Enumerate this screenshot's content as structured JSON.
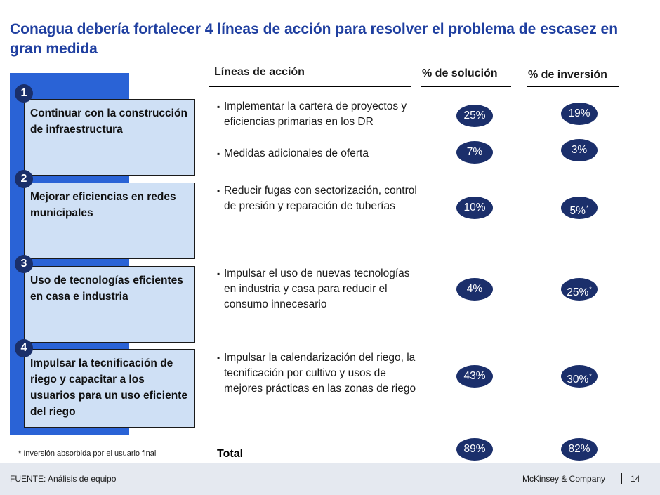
{
  "title": "Conagua debería fortalecer 4 líneas de acción para resolver el problema de escasez en gran medida",
  "headers": {
    "lineas": "Líneas de acción",
    "solucion": "% de solución",
    "inversion": "% de inversión"
  },
  "actions": [
    {
      "number": "1",
      "label": "Continuar con la construcción de infraestructura"
    },
    {
      "number": "2",
      "label": "Mejorar eficiencias en redes municipales"
    },
    {
      "number": "3",
      "label": "Uso de tecnologías eficientes en casa e industria"
    },
    {
      "number": "4",
      "label": "Impulsar la tecnificación de riego y capacitar a los usuarios para un uso eficiente del riego"
    }
  ],
  "bullets": [
    {
      "text": "Implementar la cartera de proyectos y eficiencias primarias en los DR",
      "solucion": "25%",
      "inversion": "19%",
      "inversion_mark": ""
    },
    {
      "text": "Medidas adicionales de oferta",
      "solucion": "7%",
      "inversion": "3%",
      "inversion_mark": ""
    },
    {
      "text": "Reducir fugas con sectorización, control de presión y reparación de tuberías",
      "solucion": "10%",
      "inversion": "5%",
      "inversion_mark": "*"
    },
    {
      "text": "Impulsar el uso de nuevas tecnologías en industria y casa para reducir el consumo innecesario",
      "solucion": "4%",
      "inversion": "25%",
      "inversion_mark": "*"
    },
    {
      "text": "Impulsar la calendarización del riego, la tecnificación por cultivo y usos de mejores prácticas en las zonas de riego",
      "solucion": "43%",
      "inversion": "30%",
      "inversion_mark": "*"
    }
  ],
  "total": {
    "label": "Total",
    "solucion": "89%",
    "inversion": "82%"
  },
  "footnote": "* Inversión absorbida por el usuario final",
  "footer": {
    "source": "FUENTE:  Análisis de equipo",
    "company": "McKinsey & Company",
    "page": "14"
  },
  "colors": {
    "title": "#1f3fa0",
    "sidebar": "#2a63d6",
    "card": "#cfe0f5",
    "pill": "#1b2f6b"
  }
}
